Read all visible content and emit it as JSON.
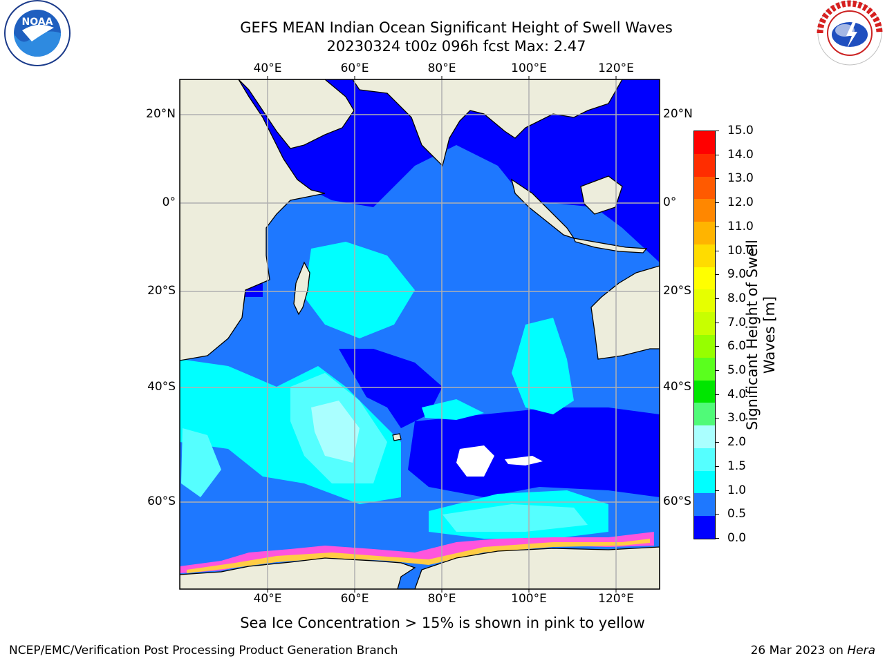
{
  "header": {
    "title_line1": "GEFS MEAN Indian Ocean Significant Height of Swell Waves",
    "title_line2": "20230324 t00z 096h fcst   Max: 2.47"
  },
  "logos": {
    "left": {
      "icon": "noaa-logo",
      "text": "NOAA",
      "ring_text": "NATIONAL OCEANIC AND ATMOSPHERIC ADMINISTRATION · U.S. DEPARTMENT OF COMMERCE"
    },
    "right": {
      "icon": "nws-logo",
      "ring_text": "NATIONAL WEATHER SERVICE"
    }
  },
  "map": {
    "lon_labels": [
      "40°E",
      "60°E",
      "80°E",
      "100°E",
      "120°E"
    ],
    "lat_labels": [
      "20°N",
      "0°",
      "20°S",
      "40°S",
      "60°S"
    ]
  },
  "colorbar": {
    "label_line1": "Significant Height of Swell",
    "label_line2": "Waves [m]",
    "ticks": [
      "15.0",
      "14.0",
      "13.0",
      "12.0",
      "11.0",
      "10.0",
      "9.0",
      "8.0",
      "7.0",
      "6.0",
      "5.0",
      "4.0",
      "3.0",
      "2.0",
      "1.5",
      "1.0",
      "0.5",
      "0.0"
    ],
    "colors": [
      "#ff0000",
      "#ff2d00",
      "#ff5a00",
      "#ff8700",
      "#ffb400",
      "#ffdc00",
      "#ffff00",
      "#e6ff00",
      "#c8ff00",
      "#96ff00",
      "#5aff1e",
      "#00e600",
      "#50fa78",
      "#aaffff",
      "#55ffff",
      "#00ffff",
      "#1e78ff",
      "#0000ff"
    ]
  },
  "notes": {
    "sea_ice": "Sea Ice Concentration > 15% is shown in pink to yellow"
  },
  "footer": {
    "left": "NCEP/EMC/Verification Post Processing Product Generation Branch",
    "right_date": "26 Mar 2023 on ",
    "right_host": "Hera"
  }
}
